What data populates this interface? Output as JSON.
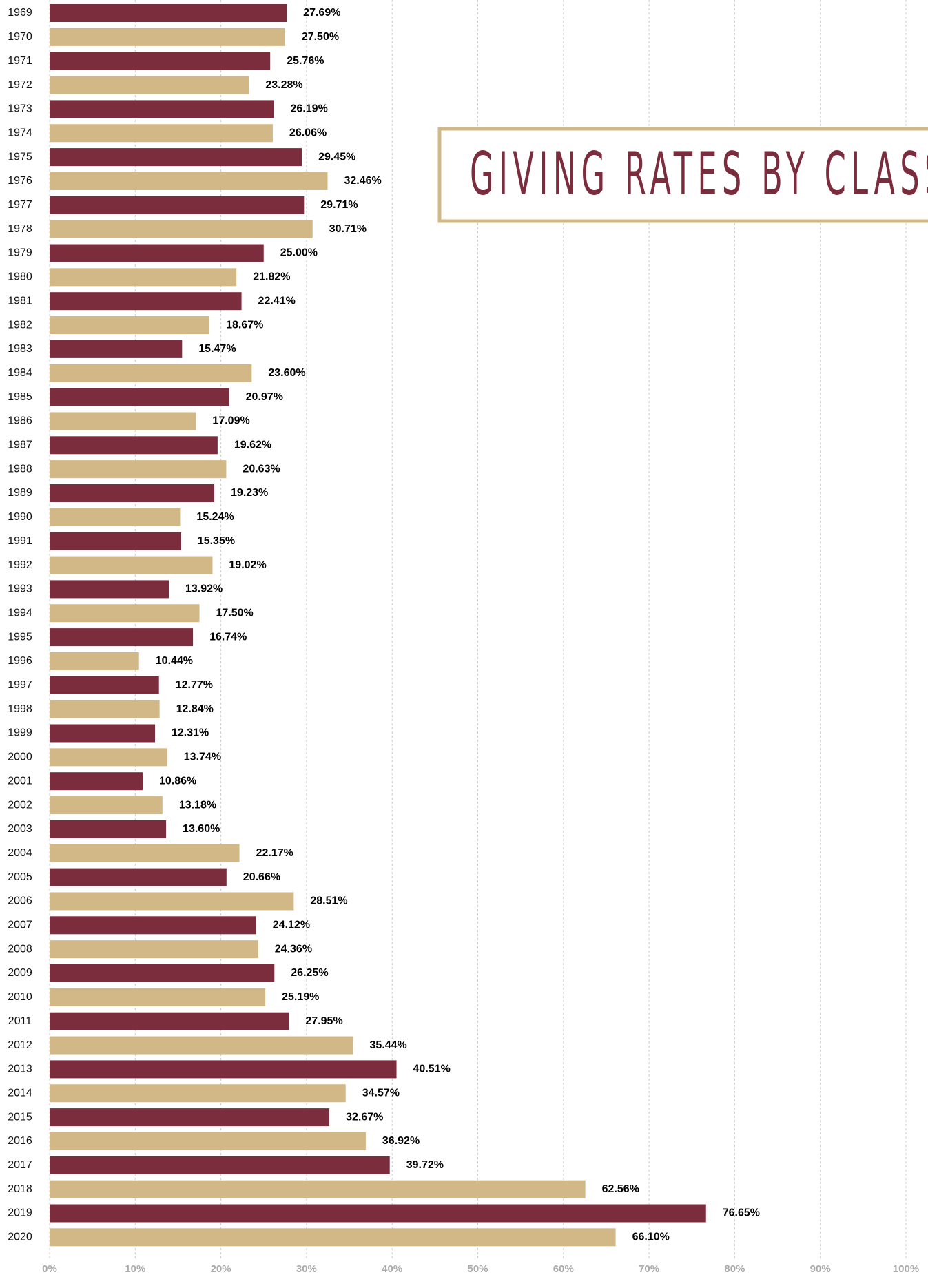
{
  "chart_data": {
    "type": "barh",
    "title": "GIVING RATES BY CLASS",
    "categories": [
      "1969",
      "1970",
      "1971",
      "1972",
      "1973",
      "1974",
      "1975",
      "1976",
      "1977",
      "1978",
      "1979",
      "1980",
      "1981",
      "1982",
      "1983",
      "1984",
      "1985",
      "1986",
      "1987",
      "1988",
      "1989",
      "1990",
      "1991",
      "1992",
      "1993",
      "1994",
      "1995",
      "1996",
      "1997",
      "1998",
      "1999",
      "2000",
      "2001",
      "2002",
      "2003",
      "2004",
      "2005",
      "2006",
      "2007",
      "2008",
      "2009",
      "2010",
      "2011",
      "2012",
      "2013",
      "2014",
      "2015",
      "2016",
      "2017",
      "2018",
      "2019",
      "2020"
    ],
    "values": [
      27.69,
      27.5,
      25.76,
      23.28,
      26.19,
      26.06,
      29.45,
      32.46,
      29.71,
      30.71,
      25.0,
      21.82,
      22.41,
      18.67,
      15.47,
      23.6,
      20.97,
      17.09,
      19.62,
      20.63,
      19.23,
      15.24,
      15.35,
      19.02,
      13.92,
      17.5,
      16.74,
      10.44,
      12.77,
      12.84,
      12.31,
      13.74,
      10.86,
      13.18,
      13.6,
      22.17,
      20.66,
      28.51,
      24.12,
      24.36,
      26.25,
      25.19,
      27.95,
      35.44,
      40.51,
      34.57,
      32.67,
      36.92,
      39.72,
      62.56,
      76.65,
      66.1
    ],
    "value_labels": [
      "27.69%",
      "27.50%",
      "25.76%",
      "23.28%",
      "26.19%",
      "26.06%",
      "29.45%",
      "32.46%",
      "29.71%",
      "30.71%",
      "25.00%",
      "21.82%",
      "22.41%",
      "18.67%",
      "15.47%",
      "23.60%",
      "20.97%",
      "17.09%",
      "19.62%",
      "20.63%",
      "19.23%",
      "15.24%",
      "15.35%",
      "19.02%",
      "13.92%",
      "17.50%",
      "16.74%",
      "10.44%",
      "12.77%",
      "12.84%",
      "12.31%",
      "13.74%",
      "10.86%",
      "13.18%",
      "13.60%",
      "22.17%",
      "20.66%",
      "28.51%",
      "24.12%",
      "24.36%",
      "26.25%",
      "25.19%",
      "27.95%",
      "35.44%",
      "40.51%",
      "34.57%",
      "32.67%",
      "36.92%",
      "39.72%",
      "62.56%",
      "76.65%",
      "66.10%"
    ],
    "colors": [
      "#7b2d3e",
      "#d2b887"
    ],
    "xlim": [
      0,
      100
    ],
    "xticks": [
      {
        "value": 0,
        "label": "0%"
      },
      {
        "value": 10,
        "label": "10%"
      },
      {
        "value": 20,
        "label": "20%"
      },
      {
        "value": 30,
        "label": "30%"
      },
      {
        "value": 40,
        "label": "40%"
      },
      {
        "value": 50,
        "label": "50%"
      },
      {
        "value": 60,
        "label": "60%"
      },
      {
        "value": 70,
        "label": "70%"
      },
      {
        "value": 80,
        "label": "80%"
      },
      {
        "value": 90,
        "label": "90%"
      },
      {
        "value": 100,
        "label": "100%"
      }
    ],
    "grid": true
  }
}
